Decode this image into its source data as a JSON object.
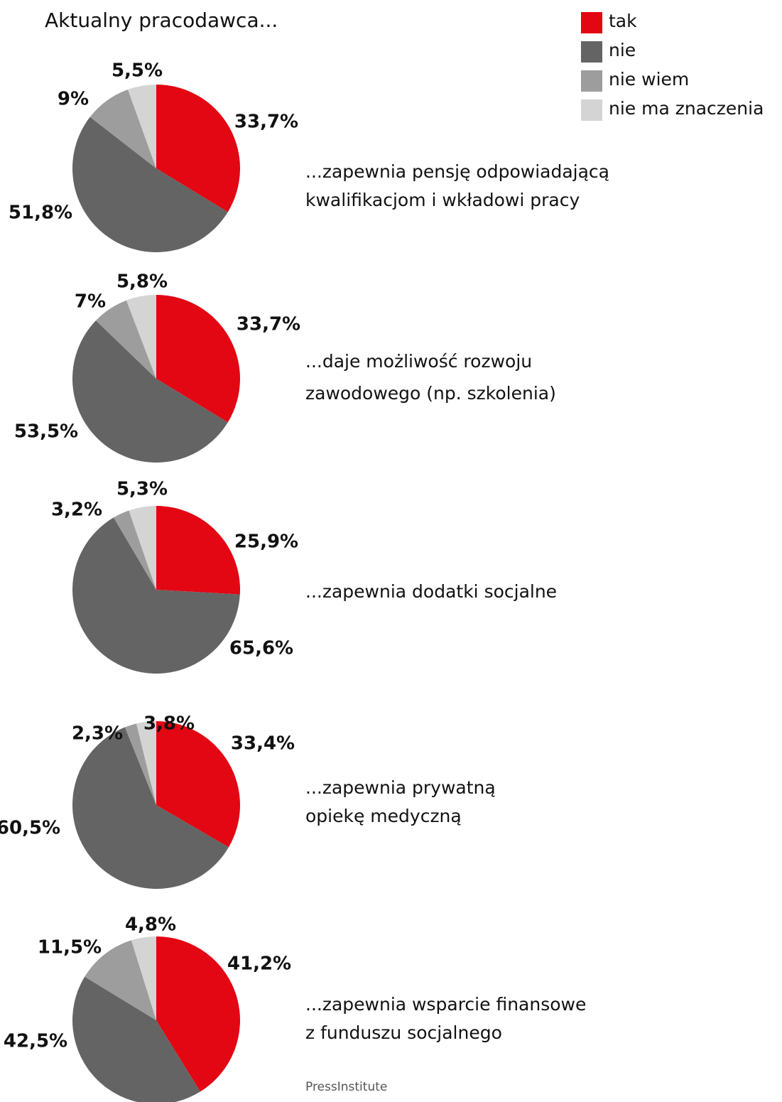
{
  "title": "Aktualny pracodawca...",
  "legend": {
    "labels": [
      "tak",
      "nie",
      "nie wiem",
      "nie ma znaczenia"
    ],
    "colors": [
      "#e30613",
      "#646464",
      "#9d9d9d",
      "#d4d4d4"
    ]
  },
  "source": "PressInstitute",
  "chart_data": [
    {
      "type": "pie",
      "subtitle": [
        "...zapewnia pensję odpowiadającą",
        "kwalifikacjom i wkładowi pracy"
      ],
      "values": [
        33.7,
        51.8,
        9,
        5.5
      ],
      "value_labels": [
        "33,7%",
        "51,8%",
        "9%",
        "5,5%"
      ]
    },
    {
      "type": "pie",
      "subtitle": [
        "...daje możliwość rozwoju",
        "zawodowego (np. szkolenia)"
      ],
      "values": [
        33.7,
        53.5,
        7,
        5.8
      ],
      "value_labels": [
        "33,7%",
        "53,5%",
        "7%",
        "5,8%"
      ]
    },
    {
      "type": "pie",
      "subtitle": [
        "...zapewnia dodatki socjalne"
      ],
      "values": [
        25.9,
        65.6,
        3.2,
        5.3
      ],
      "value_labels": [
        "25,9%",
        "65,6%",
        "3,2%",
        "5,3%"
      ]
    },
    {
      "type": "pie",
      "subtitle": [
        "...zapewnia prywatną",
        "opiekę medyczną"
      ],
      "values": [
        33.4,
        60.5,
        2.3,
        3.8
      ],
      "value_labels": [
        "33,4%",
        "60,5%",
        "2,3%",
        "3,8%"
      ]
    },
    {
      "type": "pie",
      "subtitle": [
        "...zapewnia wsparcie finansowe",
        "z funduszu socjalnego"
      ],
      "values": [
        41.2,
        42.5,
        11.5,
        4.8
      ],
      "value_labels": [
        "41,2%",
        "42,5%",
        "11,5%",
        "4,8%"
      ]
    }
  ]
}
